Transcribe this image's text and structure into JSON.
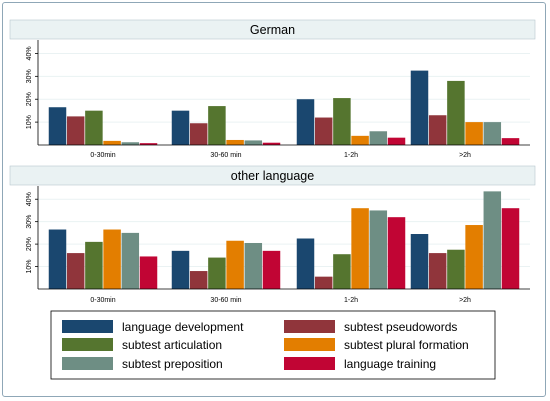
{
  "chart_data": [
    {
      "type": "bar",
      "title": "German",
      "categories": [
        "0-30min",
        "30-60 min",
        "1-2h",
        ">2h"
      ],
      "ylim": [
        0,
        45
      ],
      "yticks": [
        "10%",
        "20%",
        "30%",
        "40%"
      ],
      "grid": true,
      "series": [
        {
          "name": "language development",
          "values": [
            16.5,
            15,
            20,
            32.5
          ]
        },
        {
          "name": "subtest pseudowords",
          "values": [
            12.5,
            9.5,
            12,
            13
          ]
        },
        {
          "name": "subtest articulation",
          "values": [
            15,
            17,
            20.5,
            28
          ]
        },
        {
          "name": "subtest plural formation",
          "values": [
            1.8,
            2.2,
            4,
            10
          ]
        },
        {
          "name": "subtest preposition",
          "values": [
            1.2,
            2.0,
            6,
            10
          ]
        },
        {
          "name": "language training",
          "values": [
            0.8,
            1.0,
            3.2,
            3.0
          ]
        }
      ]
    },
    {
      "type": "bar",
      "title": "other language",
      "categories": [
        "0-30min",
        "30-60 min",
        "1-2h",
        ">2h"
      ],
      "ylim": [
        0,
        45
      ],
      "yticks": [
        "10%",
        "20%",
        "30%",
        "40%"
      ],
      "grid": true,
      "series": [
        {
          "name": "language development",
          "values": [
            26.5,
            17,
            22.5,
            24.5
          ]
        },
        {
          "name": "subtest pseudowords",
          "values": [
            16,
            8,
            5.5,
            16
          ]
        },
        {
          "name": "subtest articulation",
          "values": [
            21,
            14,
            15.5,
            17.5
          ]
        },
        {
          "name": "subtest plural formation",
          "values": [
            26.5,
            21.5,
            36,
            28.5
          ]
        },
        {
          "name": "subtest preposition",
          "values": [
            25,
            20.5,
            35,
            43.5
          ]
        },
        {
          "name": "language training",
          "values": [
            14.5,
            17,
            32,
            36
          ]
        }
      ]
    }
  ],
  "legend": {
    "position": "bottom",
    "items": [
      {
        "label": "language development",
        "color": "#1a476f"
      },
      {
        "label": "subtest pseudowords",
        "color": "#90353b"
      },
      {
        "label": "subtest articulation",
        "color": "#55752f"
      },
      {
        "label": "subtest plural formation",
        "color": "#e37e00"
      },
      {
        "label": "subtest preposition",
        "color": "#6e8e84"
      },
      {
        "label": "language training",
        "color": "#c10534"
      }
    ]
  },
  "colors": {
    "strip_background": "#eaf2f3",
    "grid": "#eaf2f3",
    "axis": "#000000",
    "frame": "#8fa7b7"
  }
}
